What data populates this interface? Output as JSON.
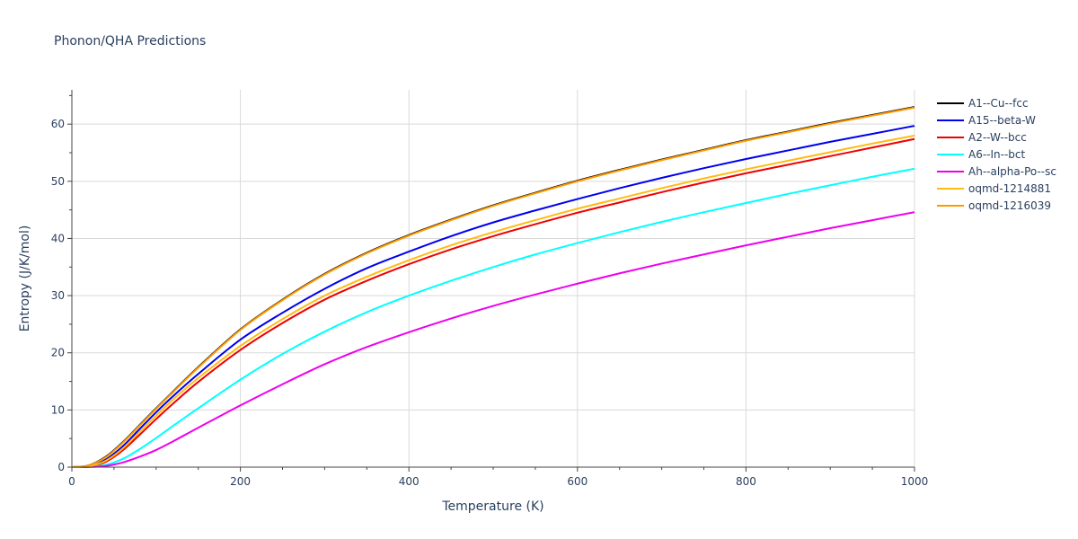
{
  "chart_data": {
    "type": "line",
    "title": "Phonon/QHA Predictions",
    "xlabel": "Temperature (K)",
    "ylabel": "Entropy (J/K/mol)",
    "xlim": [
      0,
      1000
    ],
    "ylim": [
      0,
      66
    ],
    "xticks": [
      0,
      200,
      400,
      600,
      800,
      1000
    ],
    "yticks": [
      0,
      10,
      20,
      30,
      40,
      50,
      60
    ],
    "grid": true,
    "legend_position": "right",
    "x": [
      0,
      20,
      40,
      60,
      80,
      100,
      120,
      150,
      200,
      250,
      300,
      350,
      400,
      450,
      500,
      550,
      600,
      650,
      700,
      750,
      800,
      850,
      900,
      950,
      1000
    ],
    "series": [
      {
        "name": "A1--Cu--fcc",
        "color": "#000000",
        "values": [
          0,
          0.3,
          1.8,
          4.3,
          7.3,
          10.3,
          13.2,
          17.5,
          24.1,
          29.3,
          33.8,
          37.5,
          40.6,
          43.3,
          45.8,
          48.0,
          50.1,
          52.0,
          53.8,
          55.5,
          57.2,
          58.7,
          60.2,
          61.6,
          63.0
        ]
      },
      {
        "name": "A15--beta-W",
        "color": "#0000ee",
        "values": [
          0,
          0.2,
          1.3,
          3.6,
          6.6,
          9.6,
          12.4,
          16.3,
          22.3,
          27.0,
          31.2,
          34.8,
          37.7,
          40.4,
          42.8,
          44.9,
          46.9,
          48.8,
          50.6,
          52.3,
          53.9,
          55.4,
          56.9,
          58.3,
          59.7
        ]
      },
      {
        "name": "A2--W--bcc",
        "color": "#ee0000",
        "values": [
          0,
          0.1,
          0.9,
          2.9,
          5.6,
          8.4,
          11.1,
          14.9,
          20.5,
          25.2,
          29.3,
          32.6,
          35.5,
          38.1,
          40.4,
          42.5,
          44.5,
          46.3,
          48.1,
          49.8,
          51.4,
          52.9,
          54.4,
          55.9,
          57.4
        ]
      },
      {
        "name": "A6--In--bct",
        "color": "#00ffff",
        "values": [
          0,
          0.05,
          0.4,
          1.4,
          3.1,
          5.1,
          7.2,
          10.3,
          15.3,
          19.8,
          23.7,
          27.1,
          30.0,
          32.6,
          35.0,
          37.2,
          39.2,
          41.1,
          42.9,
          44.6,
          46.2,
          47.8,
          49.3,
          50.8,
          52.2
        ]
      },
      {
        "name": "Ah--alpha-Po--sc",
        "color": "#ee00ee",
        "values": [
          0,
          0.02,
          0.2,
          0.8,
          1.8,
          3.0,
          4.5,
          6.9,
          10.8,
          14.5,
          18.0,
          21.0,
          23.6,
          26.0,
          28.2,
          30.2,
          32.1,
          33.9,
          35.6,
          37.2,
          38.8,
          40.3,
          41.8,
          43.2,
          44.6
        ]
      },
      {
        "name": "oqmd-1214881",
        "color": "#ffbb11",
        "values": [
          0,
          0.15,
          1.1,
          3.2,
          6.1,
          9.0,
          11.8,
          15.6,
          21.2,
          25.9,
          30.0,
          33.3,
          36.2,
          38.8,
          41.1,
          43.2,
          45.2,
          47.0,
          48.8,
          50.5,
          52.1,
          53.6,
          55.1,
          56.6,
          58.0
        ]
      },
      {
        "name": "oqmd-1216039",
        "color": "#ff9900",
        "values": [
          0,
          0.3,
          1.7,
          4.2,
          7.2,
          10.2,
          13.1,
          17.4,
          24.0,
          29.2,
          33.7,
          37.4,
          40.5,
          43.2,
          45.7,
          47.9,
          50.0,
          51.9,
          53.7,
          55.4,
          57.1,
          58.6,
          60.1,
          61.5,
          62.9
        ]
      }
    ]
  }
}
